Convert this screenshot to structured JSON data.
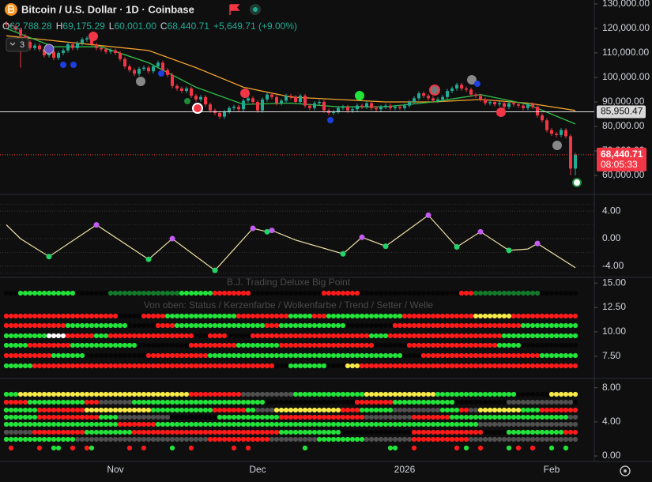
{
  "header": {
    "title": "Bitcoin / U.S. Dollar · 1D · Coinbase",
    "legend": [
      {
        "key": "O",
        "value": "62,788.28"
      },
      {
        "key": "H",
        "value": "69,175.29"
      },
      {
        "key": "L",
        "value": "60,001.00"
      },
      {
        "key": "C",
        "value": "68,440.71"
      }
    ],
    "change": "+5,649.71 (+9.00%)",
    "indicator_count": "3"
  },
  "chart_data": [
    {
      "type": "candlestick",
      "categories": [
        null,
        null,
        null,
        null,
        null,
        null,
        null,
        null,
        null,
        null,
        null,
        null,
        null,
        null,
        null,
        null,
        null,
        null,
        null,
        null,
        null,
        null,
        null,
        "Nov",
        null,
        null,
        null,
        null,
        null,
        null,
        null,
        null,
        null,
        null,
        null,
        null,
        null,
        null,
        null,
        null,
        null,
        null,
        null,
        null,
        null,
        null,
        null,
        null,
        null,
        null,
        null,
        null,
        null,
        "Dec",
        null,
        null,
        null,
        null,
        null,
        null,
        null,
        null,
        null,
        null,
        null,
        null,
        null,
        null,
        null,
        null,
        null,
        null,
        null,
        null,
        null,
        null,
        null,
        null,
        null,
        null,
        null,
        null,
        null,
        null,
        "2026",
        null,
        null,
        null,
        null,
        null,
        null,
        null,
        null,
        null,
        null,
        null,
        null,
        null,
        null,
        null,
        null,
        null,
        null,
        null,
        null,
        null,
        null,
        null,
        null,
        null,
        null,
        null,
        null,
        null,
        null,
        "Feb",
        null,
        null,
        null,
        null,
        null
      ],
      "open": [
        122000,
        121500,
        120800,
        119500,
        117000,
        114500,
        112000,
        113000,
        111500,
        109000,
        110500,
        108000,
        110000,
        111000,
        113500,
        112000,
        114000,
        115500,
        116000,
        113500,
        112000,
        111500,
        110500,
        111000,
        110000,
        107500,
        104500,
        103000,
        101500,
        103500,
        104000,
        102500,
        104500,
        106000,
        103000,
        101000,
        96500,
        95500,
        94500,
        95500,
        92500,
        91000,
        92000,
        89000,
        86500,
        85500,
        84000,
        86000,
        87500,
        88000,
        87000,
        90500,
        91500,
        90000,
        86500,
        91000,
        93000,
        92000,
        89500,
        90500,
        92500,
        92000,
        90000,
        92500,
        88500,
        87500,
        89500,
        90000,
        86500,
        85500,
        86000,
        87500,
        88000,
        86500,
        87000,
        88500,
        88000,
        89500,
        87500,
        87000,
        88000,
        88500,
        87500,
        88000,
        87500,
        88500,
        90000,
        91500,
        93500,
        92500,
        91500,
        90500,
        91000,
        92000,
        94500,
        95500,
        97000,
        95500,
        95000,
        93000,
        92500,
        91000,
        89500,
        90000,
        89000,
        89500,
        88000,
        89500,
        89000,
        88500,
        87500,
        89000,
        88000,
        84500,
        82500,
        78500,
        77000,
        76500,
        78500,
        76000,
        62788.28
      ],
      "high": [
        122800,
        122300,
        121600,
        120300,
        117800,
        115300,
        113800,
        113800,
        112300,
        111300,
        111300,
        110800,
        111800,
        114300,
        114300,
        114800,
        116300,
        116800,
        116800,
        114300,
        112800,
        112300,
        111800,
        111800,
        110800,
        108300,
        105300,
        103800,
        104300,
        104800,
        104800,
        105300,
        106800,
        106800,
        103800,
        101800,
        97300,
        96300,
        96300,
        96300,
        93300,
        92800,
        92800,
        89800,
        87300,
        86300,
        86800,
        88300,
        88800,
        88800,
        91300,
        92300,
        92300,
        90800,
        91800,
        93800,
        93800,
        92800,
        91300,
        93300,
        93300,
        92800,
        93300,
        93300,
        89300,
        90300,
        90800,
        90800,
        87300,
        86800,
        88300,
        88800,
        88800,
        87800,
        89300,
        89300,
        90300,
        90300,
        88300,
        88800,
        89300,
        89300,
        88800,
        88800,
        89300,
        90800,
        92300,
        94300,
        94300,
        93300,
        92300,
        91800,
        92800,
        95300,
        96300,
        97800,
        97800,
        96300,
        95800,
        93800,
        93300,
        91800,
        90800,
        90800,
        90300,
        90300,
        90300,
        90300,
        89800,
        89300,
        89800,
        89800,
        88800,
        85300,
        83300,
        79300,
        77800,
        79300,
        79300,
        76800,
        69175.29
      ],
      "low": [
        120600,
        119900,
        118600,
        104000,
        113600,
        111100,
        111100,
        110600,
        108100,
        108100,
        107100,
        107100,
        109100,
        110100,
        111100,
        111100,
        113100,
        114600,
        112600,
        111100,
        110600,
        109600,
        109600,
        109100,
        106600,
        103600,
        102100,
        100600,
        100600,
        102600,
        101600,
        101600,
        103600,
        102100,
        100100,
        95600,
        94600,
        93600,
        93600,
        91600,
        90100,
        90100,
        88100,
        85600,
        84600,
        83100,
        83100,
        85100,
        86600,
        86100,
        86100,
        89600,
        89100,
        85600,
        85600,
        90100,
        91100,
        88600,
        88600,
        89600,
        91100,
        89100,
        89100,
        87600,
        86600,
        86600,
        88600,
        85600,
        84600,
        84600,
        85100,
        86600,
        85600,
        85600,
        86100,
        87100,
        87100,
        86600,
        86100,
        86100,
        87100,
        86600,
        86600,
        86600,
        86600,
        87600,
        89100,
        90600,
        91600,
        90600,
        89600,
        89600,
        90100,
        91100,
        93600,
        94600,
        94600,
        94100,
        92100,
        91600,
        90100,
        88600,
        88600,
        88100,
        88100,
        87100,
        87100,
        88100,
        87600,
        86600,
        86600,
        87100,
        83600,
        81600,
        77600,
        76100,
        75600,
        75600,
        75100,
        60100,
        60001
      ],
      "close": [
        121500,
        120800,
        119500,
        117000,
        114500,
        112000,
        113000,
        111500,
        109000,
        110500,
        108000,
        110000,
        111000,
        113500,
        112000,
        114000,
        115500,
        116000,
        113500,
        112000,
        111500,
        110500,
        111000,
        110000,
        107500,
        104500,
        103000,
        101500,
        103500,
        104000,
        102500,
        104500,
        106000,
        103000,
        101000,
        96500,
        95500,
        94500,
        95500,
        92500,
        91000,
        92000,
        89000,
        86500,
        85500,
        84000,
        86000,
        87500,
        88000,
        87000,
        90500,
        91500,
        90000,
        86500,
        91000,
        93000,
        92000,
        89500,
        90500,
        92500,
        92000,
        90000,
        92500,
        88500,
        87500,
        89500,
        90000,
        86500,
        85500,
        86000,
        87500,
        88000,
        86500,
        87000,
        88500,
        88000,
        89500,
        87500,
        87000,
        88000,
        88500,
        87500,
        88000,
        87500,
        88500,
        90000,
        91500,
        93500,
        92500,
        91500,
        90500,
        91000,
        92000,
        94500,
        95500,
        97000,
        95500,
        95000,
        93000,
        92500,
        91000,
        89500,
        90000,
        89000,
        89500,
        88000,
        89500,
        89000,
        88500,
        87500,
        89000,
        88000,
        84500,
        82500,
        78500,
        77000,
        76500,
        78500,
        76000,
        62791,
        68440.71
      ],
      "up_color": "#22ab94",
      "down_color": "#f23645",
      "series": [
        {
          "color": "#f0a22e",
          "x": [
            0,
            10,
            20,
            30,
            40,
            50,
            60,
            70,
            80,
            90,
            100,
            110,
            120
          ],
          "values": [
            117000,
            115000,
            113000,
            111000,
            104000,
            96000,
            92000,
            91000,
            90000,
            90000,
            91000,
            89500,
            86500
          ]
        },
        {
          "color": "#2fbf4a",
          "x": [
            0,
            10,
            20,
            30,
            40,
            50,
            60,
            70,
            80,
            90,
            100,
            110,
            120
          ],
          "values": [
            120000,
            112500,
            112500,
            106000,
            96000,
            89000,
            89500,
            88000,
            88000,
            90000,
            93000,
            89000,
            81000
          ]
        }
      ],
      "ylim": [
        52580,
        131600
      ],
      "yticks": [
        {
          "value": 130000,
          "label": "130,000.00"
        },
        {
          "value": 120000,
          "label": "120,000.00"
        },
        {
          "value": 110000,
          "label": "110,000.00"
        },
        {
          "value": 100000,
          "label": "100,000.00"
        },
        {
          "value": 90000,
          "label": "90,000.00"
        },
        {
          "value": 80000,
          "label": "80,000.00"
        },
        {
          "value": 70000,
          "label": "70,000.00"
        },
        {
          "value": 60000,
          "label": "60,000.00"
        }
      ],
      "price_lines": [
        {
          "value": 85950.47,
          "label": "85,950.47"
        }
      ],
      "last_price": {
        "value": 68440.71,
        "label": "68,440.71",
        "countdown": "08:05:33"
      }
    },
    {
      "type": "line",
      "color": "#efe2a6",
      "x": [
        0,
        3,
        9,
        19,
        30,
        35,
        44,
        52,
        55,
        56,
        61,
        71,
        75,
        80,
        89,
        95,
        100,
        106,
        110,
        112,
        120
      ],
      "values": [
        2,
        0,
        -2.6,
        2,
        -3,
        0,
        -4.6,
        1.5,
        1,
        1.2,
        -0.2,
        -2.2,
        0.2,
        -1.1,
        3.4,
        -1.2,
        1,
        -1.7,
        -1.5,
        -0.7,
        -4.2
      ],
      "ylim": [
        -5.5,
        6.2
      ],
      "yticks": [
        {
          "value": 4,
          "label": "4.00"
        },
        {
          "value": 0,
          "label": "0.00"
        },
        {
          "value": -4,
          "label": "-4.00"
        }
      ]
    },
    {
      "type": "dots",
      "title": "B.J. Trading Deluxe Big Point",
      "subtitle": "Von oben: Status / Kerzenfarbe / Wolkenfarbe / Trend / Setter / Welle",
      "ylim": [
        5.3,
        15.5
      ],
      "yticks": [
        {
          "value": 15,
          "label": "15.00"
        },
        {
          "value": 12.5,
          "label": "12.50"
        },
        {
          "value": 10,
          "label": "10.00"
        },
        {
          "value": 7.5,
          "label": "7.50"
        }
      ]
    },
    {
      "type": "dots",
      "ylim": [
        -0.55,
        9.0
      ],
      "yticks": [
        {
          "value": 8,
          "label": "8.00"
        },
        {
          "value": 4,
          "label": "4.00"
        },
        {
          "value": 0,
          "label": "0.00"
        }
      ]
    }
  ]
}
